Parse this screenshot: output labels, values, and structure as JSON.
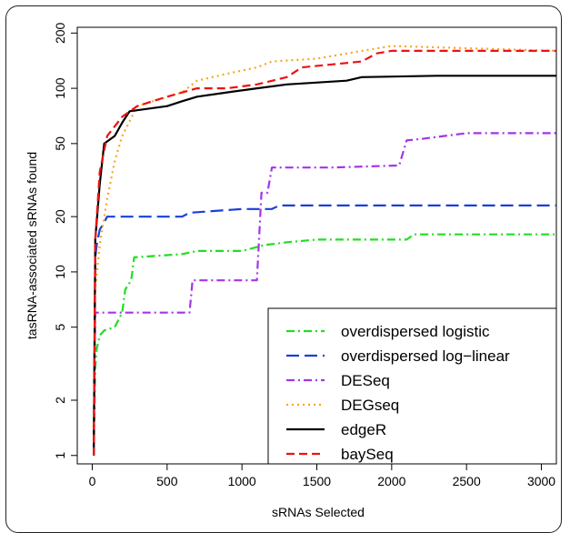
{
  "chart_data": {
    "type": "line",
    "title": "",
    "xlabel": "sRNAs Selected",
    "ylabel": "tasRNA-associated sRNAs found",
    "xlim": [
      -100,
      3100
    ],
    "ylim": [
      0.9,
      215
    ],
    "yscale": "log",
    "x_ticks": [
      0,
      500,
      1000,
      1500,
      2000,
      2500,
      3000
    ],
    "y_ticks": [
      1,
      2,
      5,
      10,
      20,
      50,
      100,
      200
    ],
    "grid": false,
    "legend_position": "bottom-right",
    "series": [
      {
        "name": "overdispersed logistic",
        "color": "#22dd22",
        "dash": "dashdot",
        "points": [
          [
            10,
            1
          ],
          [
            20,
            3
          ],
          [
            30,
            3.8
          ],
          [
            50,
            4.5
          ],
          [
            80,
            4.8
          ],
          [
            150,
            5
          ],
          [
            200,
            6
          ],
          [
            220,
            8
          ],
          [
            260,
            9
          ],
          [
            280,
            12
          ],
          [
            600,
            12.5
          ],
          [
            700,
            13
          ],
          [
            1000,
            13
          ],
          [
            1150,
            14
          ],
          [
            1300,
            14.5
          ],
          [
            1500,
            15
          ],
          [
            2100,
            15
          ],
          [
            2150,
            16
          ],
          [
            3100,
            16
          ]
        ]
      },
      {
        "name": "overdispersed log−linear",
        "color": "#1a3fd8",
        "dash": "longdash",
        "points": [
          [
            10,
            1
          ],
          [
            20,
            12
          ],
          [
            30,
            14
          ],
          [
            50,
            17
          ],
          [
            70,
            18
          ],
          [
            100,
            20
          ],
          [
            600,
            20
          ],
          [
            650,
            21
          ],
          [
            1000,
            22
          ],
          [
            1200,
            22
          ],
          [
            1250,
            23
          ],
          [
            3100,
            23
          ]
        ]
      },
      {
        "name": "DESeq",
        "color": "#a335e8",
        "dash": "dashdot",
        "points": [
          [
            10,
            1
          ],
          [
            20,
            6
          ],
          [
            650,
            6
          ],
          [
            670,
            9
          ],
          [
            1100,
            9
          ],
          [
            1130,
            27
          ],
          [
            1170,
            27
          ],
          [
            1200,
            37
          ],
          [
            1600,
            37
          ],
          [
            2050,
            38
          ],
          [
            2100,
            52
          ],
          [
            2200,
            53
          ],
          [
            2500,
            57
          ],
          [
            3100,
            57
          ]
        ]
      },
      {
        "name": "DEGseq",
        "color": "#f5a623",
        "dash": "dotted",
        "points": [
          [
            10,
            1
          ],
          [
            20,
            8
          ],
          [
            50,
            14
          ],
          [
            100,
            25
          ],
          [
            150,
            40
          ],
          [
            200,
            55
          ],
          [
            300,
            80
          ],
          [
            600,
            95
          ],
          [
            700,
            110
          ],
          [
            900,
            120
          ],
          [
            1100,
            130
          ],
          [
            1200,
            140
          ],
          [
            1500,
            145
          ],
          [
            1900,
            165
          ],
          [
            2000,
            170
          ],
          [
            3100,
            160
          ]
        ]
      },
      {
        "name": "edgeR",
        "color": "#000000",
        "dash": "solid",
        "points": [
          [
            10,
            1
          ],
          [
            20,
            15
          ],
          [
            50,
            30
          ],
          [
            80,
            50
          ],
          [
            150,
            55
          ],
          [
            200,
            65
          ],
          [
            250,
            75
          ],
          [
            500,
            80
          ],
          [
            600,
            85
          ],
          [
            700,
            90
          ],
          [
            900,
            95
          ],
          [
            1100,
            100
          ],
          [
            1300,
            105
          ],
          [
            1700,
            110
          ],
          [
            1800,
            115
          ],
          [
            2300,
            117
          ],
          [
            3100,
            117
          ]
        ]
      },
      {
        "name": "baySeq",
        "color": "#ee1111",
        "dash": "dashed",
        "points": [
          [
            10,
            1
          ],
          [
            20,
            15
          ],
          [
            50,
            35
          ],
          [
            100,
            55
          ],
          [
            200,
            70
          ],
          [
            300,
            80
          ],
          [
            500,
            90
          ],
          [
            700,
            100
          ],
          [
            900,
            100
          ],
          [
            1100,
            105
          ],
          [
            1300,
            115
          ],
          [
            1400,
            130
          ],
          [
            1800,
            140
          ],
          [
            1900,
            155
          ],
          [
            2000,
            160
          ],
          [
            3100,
            160
          ]
        ]
      }
    ]
  }
}
